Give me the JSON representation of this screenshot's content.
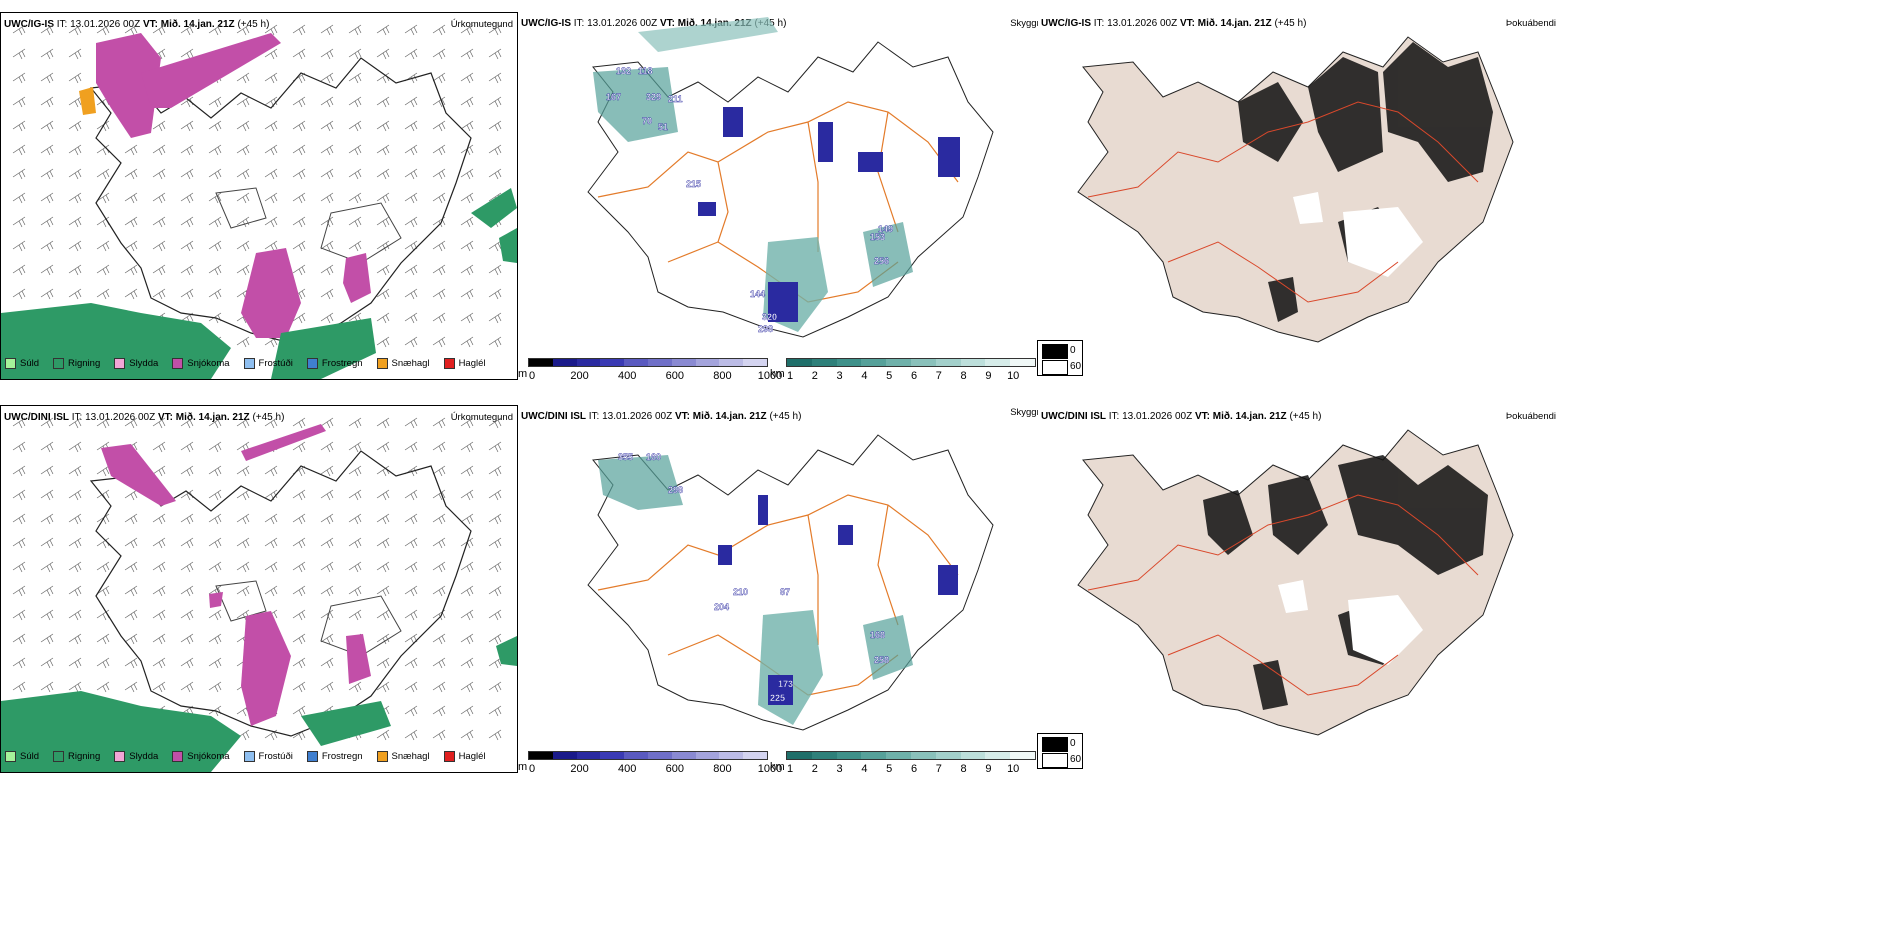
{
  "rows": [
    {
      "model": "UWC/IG-IS",
      "it_label": "IT:",
      "it_value": "13.01.2026 00Z",
      "vt_label": "VT:",
      "vt_value": "Mið. 14.jan. 21Z",
      "lead": "(+45 h)"
    },
    {
      "model": "UWC/DINI ISL",
      "it_label": "IT:",
      "it_value": "13.01.2026 00Z",
      "vt_label": "VT:",
      "vt_value": "Mið. 14.jan. 21Z",
      "lead": "(+45 h)"
    }
  ],
  "panel_titles": {
    "precip_type": "Úrkomutegund",
    "cloud": "Skyggni",
    "fog": "Þokuábendi"
  },
  "precip_legend": [
    {
      "label": "Súld",
      "color": "#a6f29a"
    },
    {
      "label": "Rigning",
      "color": "#2e9a66"
    },
    {
      "label": "Slydda",
      "color": "#f2a6d6"
    },
    {
      "label": "Snjókoma",
      "color": "#c24fa8"
    },
    {
      "label": "Frostúði",
      "color": "#8fbff0"
    },
    {
      "label": "Frostregn",
      "color": "#3f7fd0"
    },
    {
      "label": "Snæhagl",
      "color": "#f0a020"
    },
    {
      "label": "Haglél",
      "color": "#e02020"
    }
  ],
  "cloud_base_scale": {
    "unit": "m",
    "ticks": [
      "0",
      "200",
      "400",
      "600",
      "800",
      "1000"
    ],
    "colors": [
      "#000000",
      "#1a1a8a",
      "#2a2aa0",
      "#3a3ab4",
      "#5a5ac0",
      "#7070c8",
      "#8a8ad2",
      "#a4a4dc",
      "#bcbce6",
      "#d4d4f0"
    ]
  },
  "visibility_scale": {
    "unit": "km",
    "ticks": [
      "1",
      "2",
      "3",
      "4",
      "5",
      "6",
      "7",
      "8",
      "9",
      "10"
    ],
    "colors": [
      "#1f6f6a",
      "#2e807a",
      "#3f918a",
      "#56a19a",
      "#6fb1aa",
      "#8ac1bb",
      "#a3d0cb",
      "#bddfdb",
      "#d6ece9",
      "#f0f8f7"
    ]
  },
  "fog_scale": {
    "max_label": "0",
    "min_label": "60",
    "max_color": "#000000",
    "min_color": "#ffffff"
  },
  "map_labels": {
    "top": [
      "132",
      "118",
      "167",
      "329",
      "211",
      "70",
      "51",
      "215",
      "144",
      "320",
      "298",
      "153",
      "256",
      "149"
    ],
    "bottom": [
      "355",
      "160",
      "298",
      "204",
      "210",
      "87",
      "168",
      "258",
      "173",
      "225"
    ]
  }
}
